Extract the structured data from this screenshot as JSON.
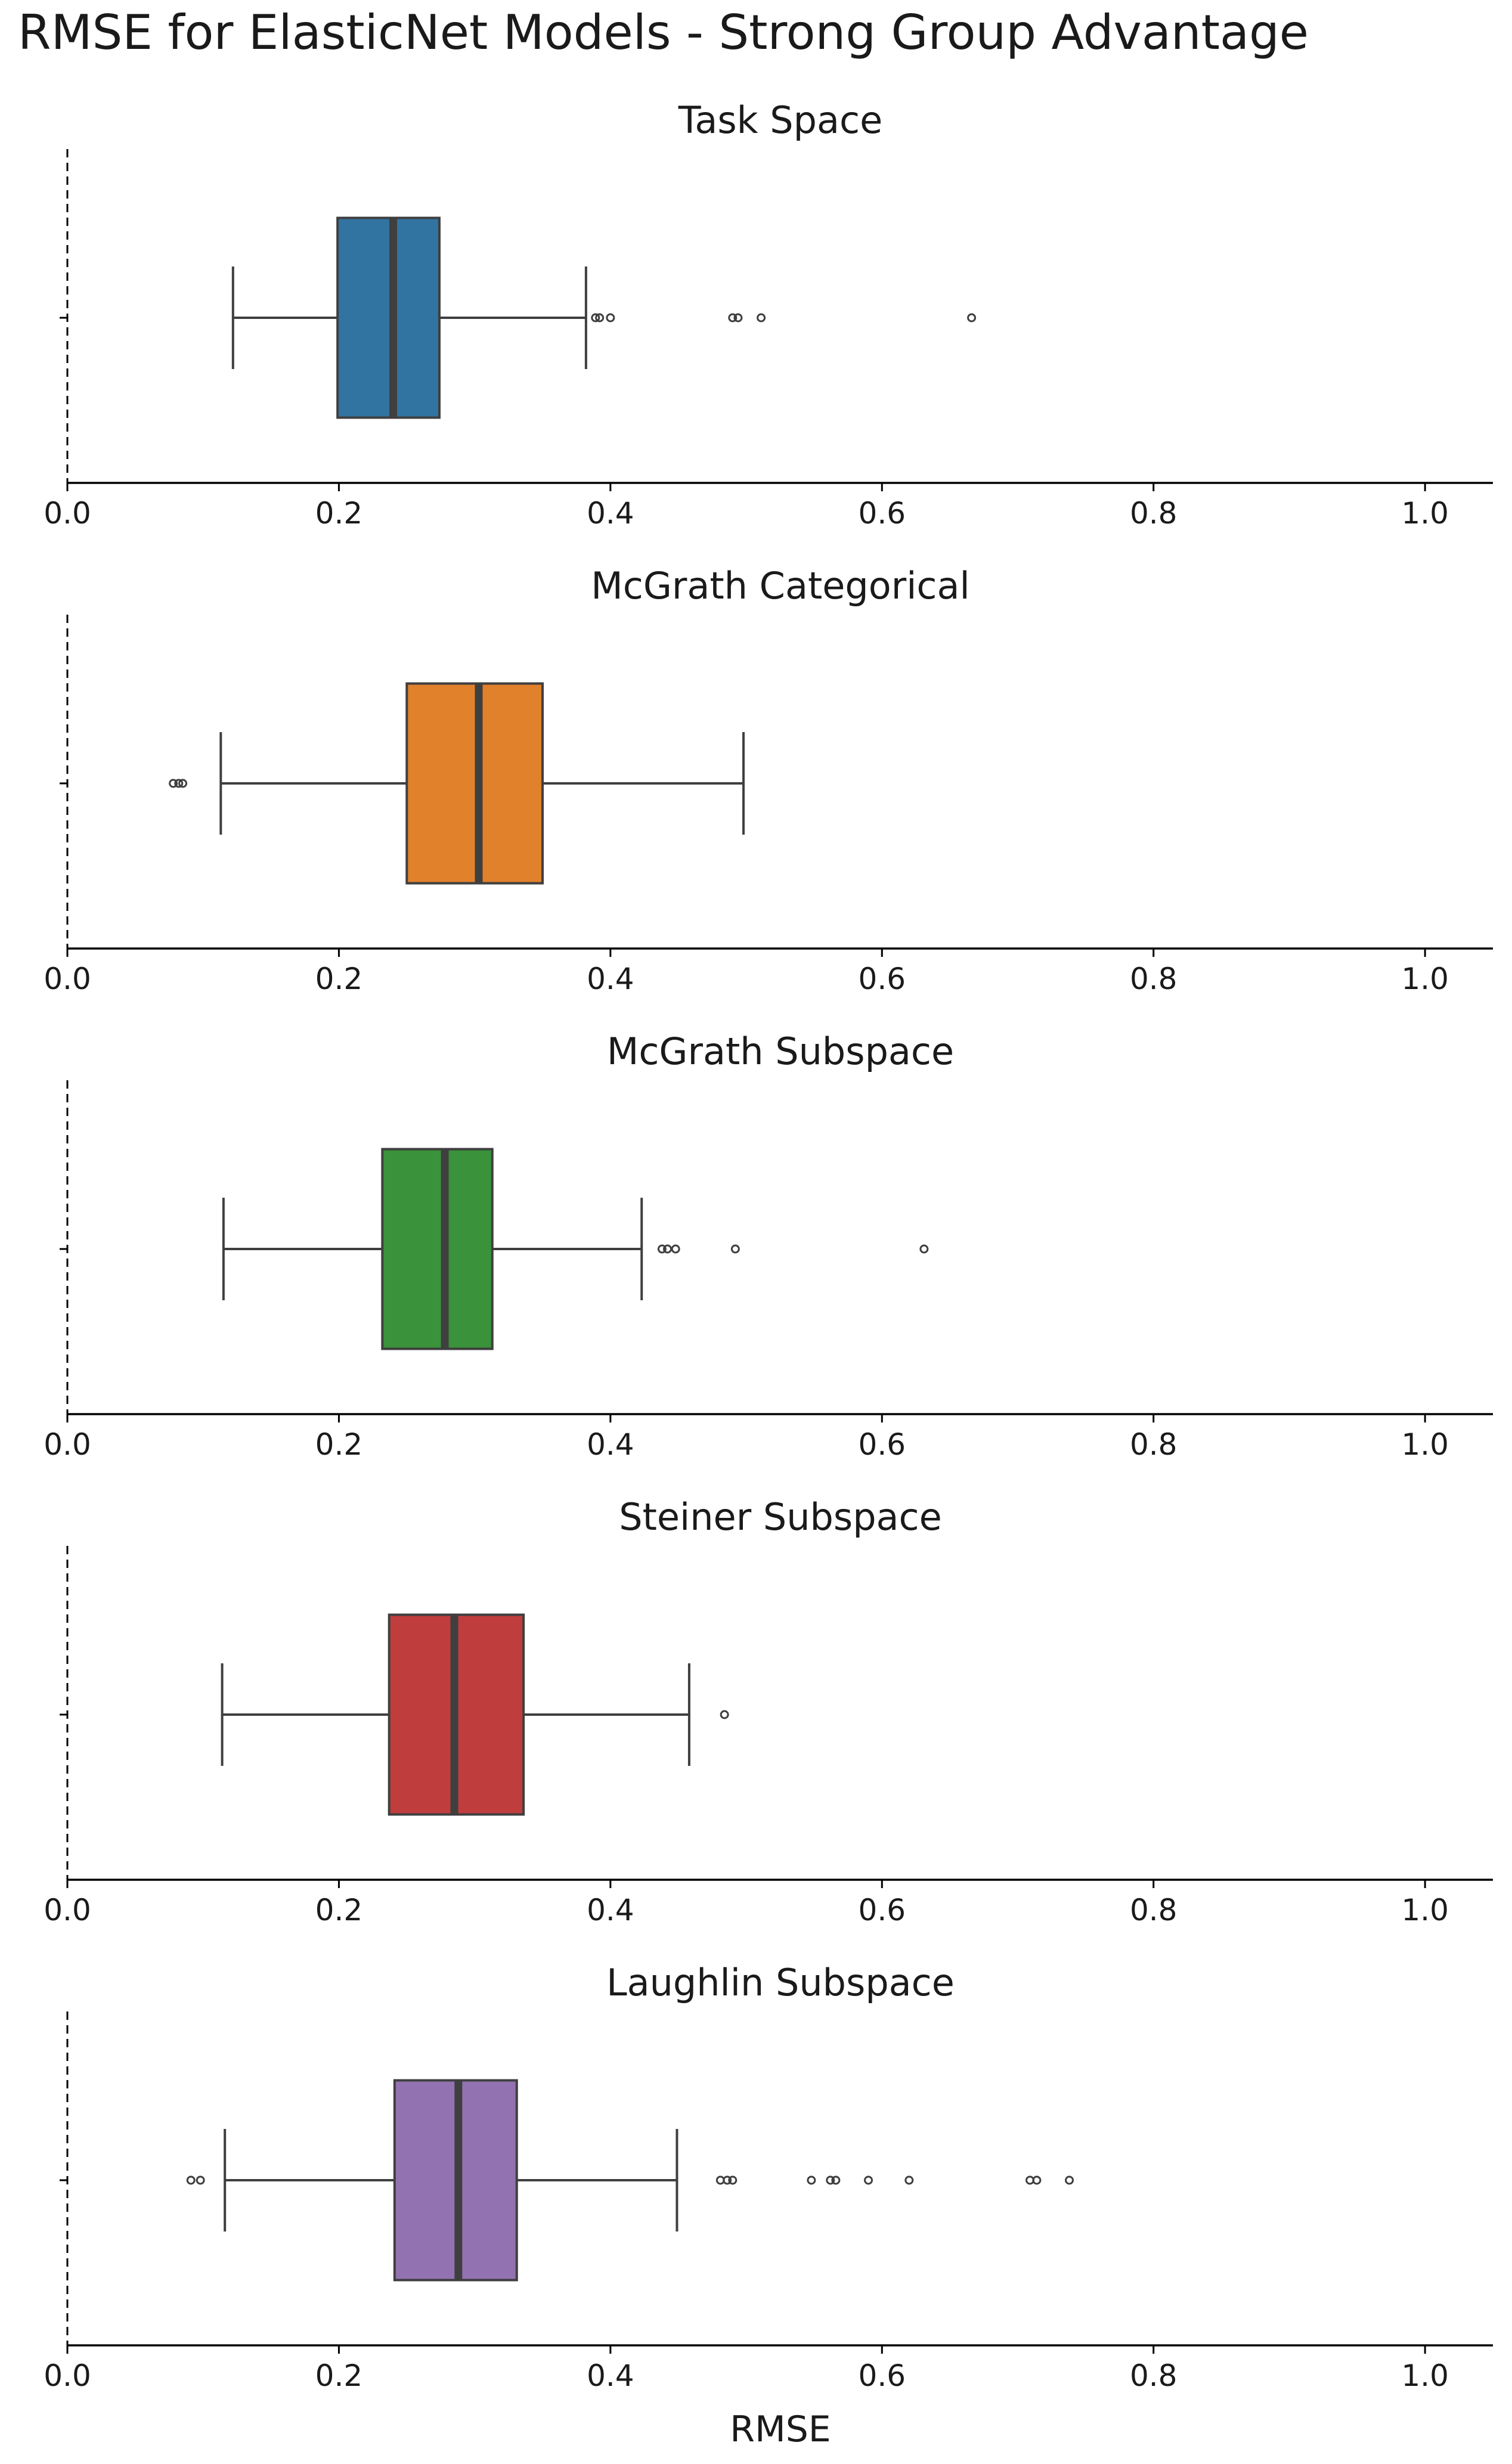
{
  "figure_title": "RMSE for ElasticNet Models - Strong Group Advantage",
  "colors": {
    "axis": "#000000",
    "whisker": "#3f3f3f",
    "median": "#3f3f3f"
  },
  "chart_data": {
    "type": "box",
    "orientation": "horizontal",
    "xlabel": "RMSE",
    "xlim": [
      0.0,
      1.05
    ],
    "xticks": [
      "0.0",
      "0.2",
      "0.4",
      "0.6",
      "0.8",
      "1.0"
    ],
    "grid": false,
    "panels": [
      {
        "title": "Task Space",
        "color": "#3274a1",
        "whisker_low": 0.122,
        "q1": 0.199,
        "median": 0.24,
        "q3": 0.274,
        "whisker_high": 0.382,
        "outliers": [
          0.389,
          0.392,
          0.4,
          0.49,
          0.494,
          0.511,
          0.666
        ]
      },
      {
        "title": "McGrath Categorical",
        "color": "#e1812c",
        "whisker_low": 0.113,
        "q1": 0.25,
        "median": 0.303,
        "q3": 0.35,
        "whisker_high": 0.498,
        "outliers": [
          0.078,
          0.082,
          0.085
        ]
      },
      {
        "title": "McGrath Subspace",
        "color": "#3a923a",
        "whisker_low": 0.115,
        "q1": 0.232,
        "median": 0.278,
        "q3": 0.313,
        "whisker_high": 0.423,
        "outliers": [
          0.438,
          0.442,
          0.448,
          0.492,
          0.631
        ]
      },
      {
        "title": "Steiner Subspace",
        "color": "#c03d3e",
        "whisker_low": 0.114,
        "q1": 0.237,
        "median": 0.285,
        "q3": 0.336,
        "whisker_high": 0.458,
        "outliers": [
          0.484
        ]
      },
      {
        "title": "Laughlin Subspace",
        "color": "#9372b2",
        "whisker_low": 0.116,
        "q1": 0.241,
        "median": 0.288,
        "q3": 0.331,
        "whisker_high": 0.449,
        "outliers": [
          0.091,
          0.098,
          0.481,
          0.486,
          0.49,
          0.548,
          0.562,
          0.566,
          0.59,
          0.62,
          0.709,
          0.714,
          0.738
        ]
      }
    ]
  }
}
